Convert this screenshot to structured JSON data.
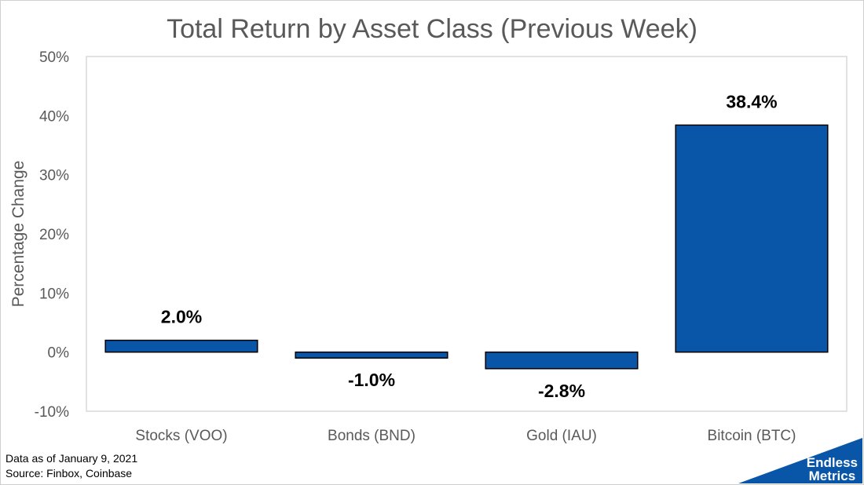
{
  "chart_data": {
    "type": "bar",
    "title": "Total Return by Asset Class (Previous Week)",
    "xlabel": "",
    "ylabel": "Percentage Change",
    "categories": [
      "Stocks (VOO)",
      "Bonds (BND)",
      "Gold (IAU)",
      "Bitcoin (BTC)"
    ],
    "values": [
      2.0,
      -1.0,
      -2.8,
      38.4
    ],
    "data_labels": [
      "2.0%",
      "-1.0%",
      "-2.8%",
      "38.4%"
    ],
    "ylim": [
      -10,
      50
    ],
    "yticks": [
      -10,
      0,
      10,
      20,
      30,
      40,
      50
    ],
    "ytick_labels": [
      "-10%",
      "0%",
      "10%",
      "20%",
      "30%",
      "40%",
      "50%"
    ],
    "grid": false,
    "bar_color": "#0955A8",
    "bar_edge_color": "#000000"
  },
  "footnote": {
    "line1": "Data as of January 9, 2021",
    "line2": "Source: Finbox, Coinbase"
  },
  "logo": {
    "line1": "Endless",
    "line2": "Metrics",
    "color": "#0955A8"
  }
}
